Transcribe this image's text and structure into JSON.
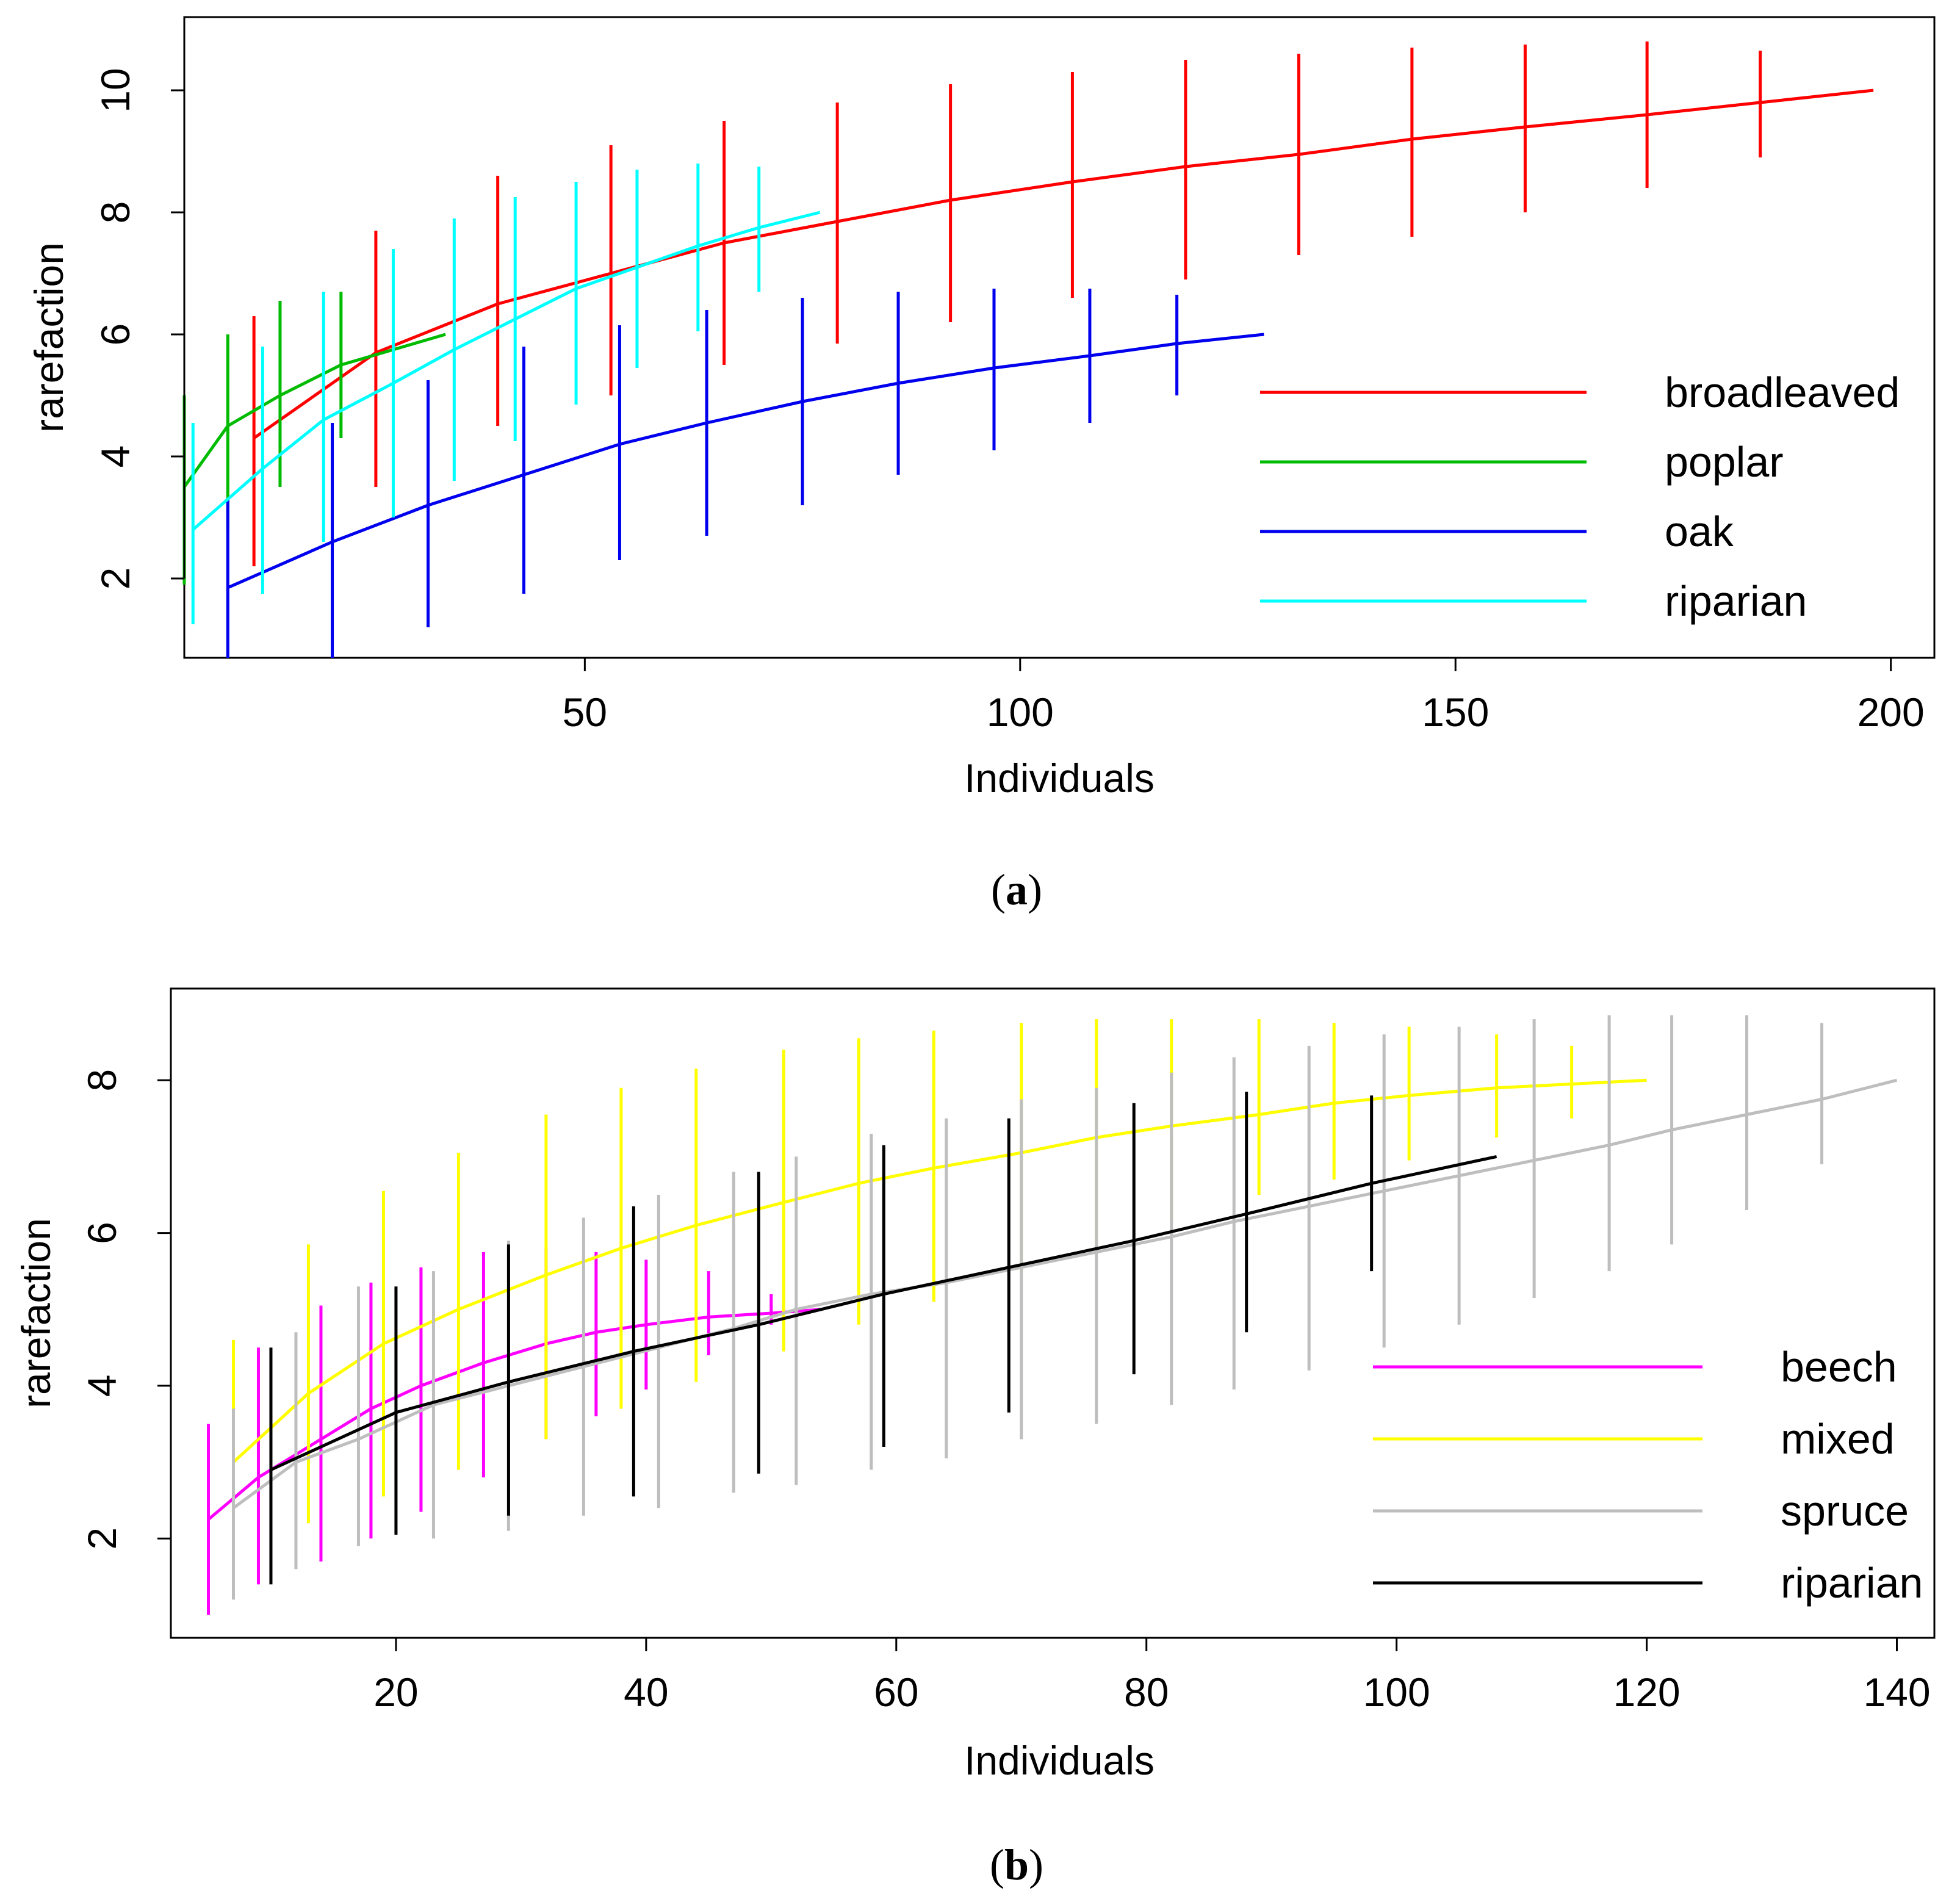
{
  "captions": {
    "a": {
      "open": "(",
      "letter": "a",
      "close": ")"
    },
    "b": {
      "open": "(",
      "letter": "b",
      "close": ")"
    }
  },
  "chart_data": [
    {
      "id": "a",
      "type": "line",
      "xlabel": "Individuals",
      "ylabel": "rarefaction",
      "xlim": [
        4,
        205
      ],
      "ylim": [
        0.7,
        11.2
      ],
      "xticks": [
        50,
        100,
        150,
        200
      ],
      "yticks": [
        2,
        4,
        6,
        8,
        10
      ],
      "grid": false,
      "legend_position": "bottom-right",
      "series": [
        {
          "name": "broadleaved",
          "color": "#ff0000",
          "x": [
            12,
            26,
            40,
            53,
            66,
            79,
            92,
            106,
            119,
            132,
            145,
            158,
            172,
            185,
            198
          ],
          "y": [
            4.3,
            5.7,
            6.5,
            7.0,
            7.5,
            7.85,
            8.2,
            8.5,
            8.75,
            8.95,
            9.2,
            9.4,
            9.6,
            9.8,
            10.0
          ],
          "err_low": [
            2.2,
            3.5,
            4.5,
            5.0,
            5.5,
            5.85,
            6.2,
            6.6,
            6.9,
            7.3,
            7.6,
            8.0,
            8.4,
            8.9,
            null
          ],
          "err_high": [
            6.3,
            7.7,
            8.6,
            9.1,
            9.5,
            9.8,
            10.1,
            10.3,
            10.5,
            10.6,
            10.7,
            10.75,
            10.8,
            10.65,
            null
          ]
        },
        {
          "name": "poplar",
          "color": "#00bb00",
          "x": [
            4,
            9,
            15,
            22,
            34
          ],
          "y": [
            3.5,
            4.5,
            5.0,
            5.5,
            6.0
          ],
          "err_low": [
            1.9,
            2.8,
            3.5,
            4.3,
            null
          ],
          "err_high": [
            5.0,
            6.0,
            6.55,
            6.7,
            null
          ]
        },
        {
          "name": "oak",
          "color": "#0000ee",
          "x": [
            9,
            21,
            32,
            43,
            54,
            64,
            75,
            86,
            97,
            108,
            118,
            128
          ],
          "y": [
            1.85,
            2.6,
            3.2,
            3.7,
            4.2,
            4.55,
            4.9,
            5.2,
            5.45,
            5.65,
            5.85,
            6.0
          ],
          "err_low": [
            0.7,
            0.7,
            1.2,
            1.75,
            2.3,
            2.7,
            3.2,
            3.7,
            4.1,
            4.55,
            5.0,
            null
          ],
          "err_high": [
            3.3,
            4.55,
            5.25,
            5.8,
            6.15,
            6.4,
            6.6,
            6.7,
            6.75,
            6.75,
            6.65,
            null
          ]
        },
        {
          "name": "riparian",
          "color": "#00ffff",
          "x": [
            5,
            13,
            20,
            28,
            35,
            42,
            49,
            56,
            63,
            70,
            77
          ],
          "y": [
            2.8,
            3.8,
            4.6,
            5.2,
            5.75,
            6.25,
            6.75,
            7.1,
            7.45,
            7.75,
            8.0
          ],
          "err_low": [
            1.25,
            1.75,
            2.6,
            3.0,
            3.6,
            4.25,
            4.85,
            5.45,
            6.05,
            6.7,
            null
          ],
          "err_high": [
            4.55,
            5.8,
            6.7,
            7.4,
            7.9,
            8.25,
            8.5,
            8.7,
            8.8,
            8.75,
            null
          ]
        }
      ]
    },
    {
      "id": "b",
      "type": "line",
      "xlabel": "Individuals",
      "ylabel": "rarefaction",
      "xlim": [
        2,
        143
      ],
      "ylim": [
        0.7,
        9.2
      ],
      "xticks": [
        20,
        40,
        60,
        80,
        100,
        120,
        140
      ],
      "yticks": [
        2,
        4,
        6,
        8
      ],
      "grid": false,
      "legend_position": "bottom-right",
      "series": [
        {
          "name": "beech",
          "color": "#ff00ff",
          "x": [
            5,
            9,
            14,
            18,
            22,
            27,
            32,
            36,
            40,
            45,
            50,
            54
          ],
          "y": [
            2.25,
            2.8,
            3.3,
            3.7,
            4.0,
            4.3,
            4.55,
            4.7,
            4.8,
            4.9,
            4.95,
            5.0
          ],
          "err_low": [
            1.0,
            1.4,
            1.7,
            2.0,
            2.35,
            2.8,
            3.3,
            3.6,
            3.95,
            4.4,
            4.8,
            null
          ],
          "err_high": [
            3.5,
            4.5,
            5.05,
            5.35,
            5.55,
            5.75,
            5.8,
            5.75,
            5.65,
            5.5,
            5.2,
            null
          ]
        },
        {
          "name": "mixed",
          "color": "#ffff00",
          "x": [
            7,
            13,
            19,
            25,
            32,
            38,
            44,
            51,
            57,
            63,
            70,
            76,
            82,
            89,
            95,
            101,
            108,
            114,
            120
          ],
          "y": [
            3.0,
            3.9,
            4.55,
            5.0,
            5.45,
            5.8,
            6.1,
            6.4,
            6.65,
            6.85,
            7.05,
            7.25,
            7.4,
            7.55,
            7.7,
            7.8,
            7.9,
            7.95,
            8.0
          ],
          "err_low": [
            1.45,
            2.2,
            2.55,
            2.9,
            3.3,
            3.7,
            4.05,
            4.45,
            4.8,
            5.1,
            5.5,
            5.85,
            6.15,
            6.5,
            6.7,
            6.95,
            7.25,
            7.5,
            null
          ],
          "err_high": [
            4.6,
            5.85,
            6.55,
            7.05,
            7.55,
            7.9,
            8.15,
            8.4,
            8.55,
            8.65,
            8.75,
            8.8,
            8.8,
            8.8,
            8.75,
            8.7,
            8.6,
            8.45,
            null
          ]
        },
        {
          "name": "spruce",
          "color": "#bebebe",
          "x": [
            7,
            12,
            17,
            23,
            29,
            35,
            41,
            47,
            52,
            58,
            64,
            70,
            76,
            82,
            87,
            93,
            99,
            105,
            111,
            117,
            122,
            128,
            134,
            140
          ],
          "y": [
            2.4,
            3.0,
            3.3,
            3.75,
            4.0,
            4.25,
            4.5,
            4.75,
            5.0,
            5.2,
            5.35,
            5.55,
            5.75,
            5.95,
            6.15,
            6.35,
            6.55,
            6.75,
            6.95,
            7.15,
            7.35,
            7.55,
            7.75,
            8.0
          ],
          "err_low": [
            1.2,
            1.6,
            1.9,
            2.0,
            2.1,
            2.3,
            2.4,
            2.6,
            2.7,
            2.9,
            3.05,
            3.3,
            3.5,
            3.75,
            3.95,
            4.2,
            4.5,
            4.8,
            5.15,
            5.5,
            5.85,
            6.3,
            6.9,
            null
          ],
          "err_high": [
            3.7,
            4.7,
            5.3,
            5.5,
            5.9,
            6.2,
            6.5,
            6.8,
            7.0,
            7.3,
            7.5,
            7.75,
            7.9,
            8.1,
            8.3,
            8.45,
            8.6,
            8.7,
            8.8,
            8.85,
            8.85,
            8.85,
            8.75,
            null
          ]
        },
        {
          "name": "riparian",
          "color": "#000000",
          "x": [
            10,
            20,
            29,
            39,
            49,
            59,
            69,
            79,
            88,
            98,
            108
          ],
          "y": [
            2.9,
            3.65,
            4.05,
            4.45,
            4.8,
            5.2,
            5.55,
            5.9,
            6.25,
            6.65,
            7.0
          ],
          "err_low": [
            1.4,
            2.05,
            2.3,
            2.55,
            2.85,
            3.2,
            3.65,
            4.15,
            4.7,
            5.5,
            null
          ],
          "err_high": [
            4.5,
            5.3,
            5.85,
            6.35,
            6.8,
            7.15,
            7.5,
            7.7,
            7.85,
            7.8,
            null
          ]
        }
      ]
    }
  ]
}
